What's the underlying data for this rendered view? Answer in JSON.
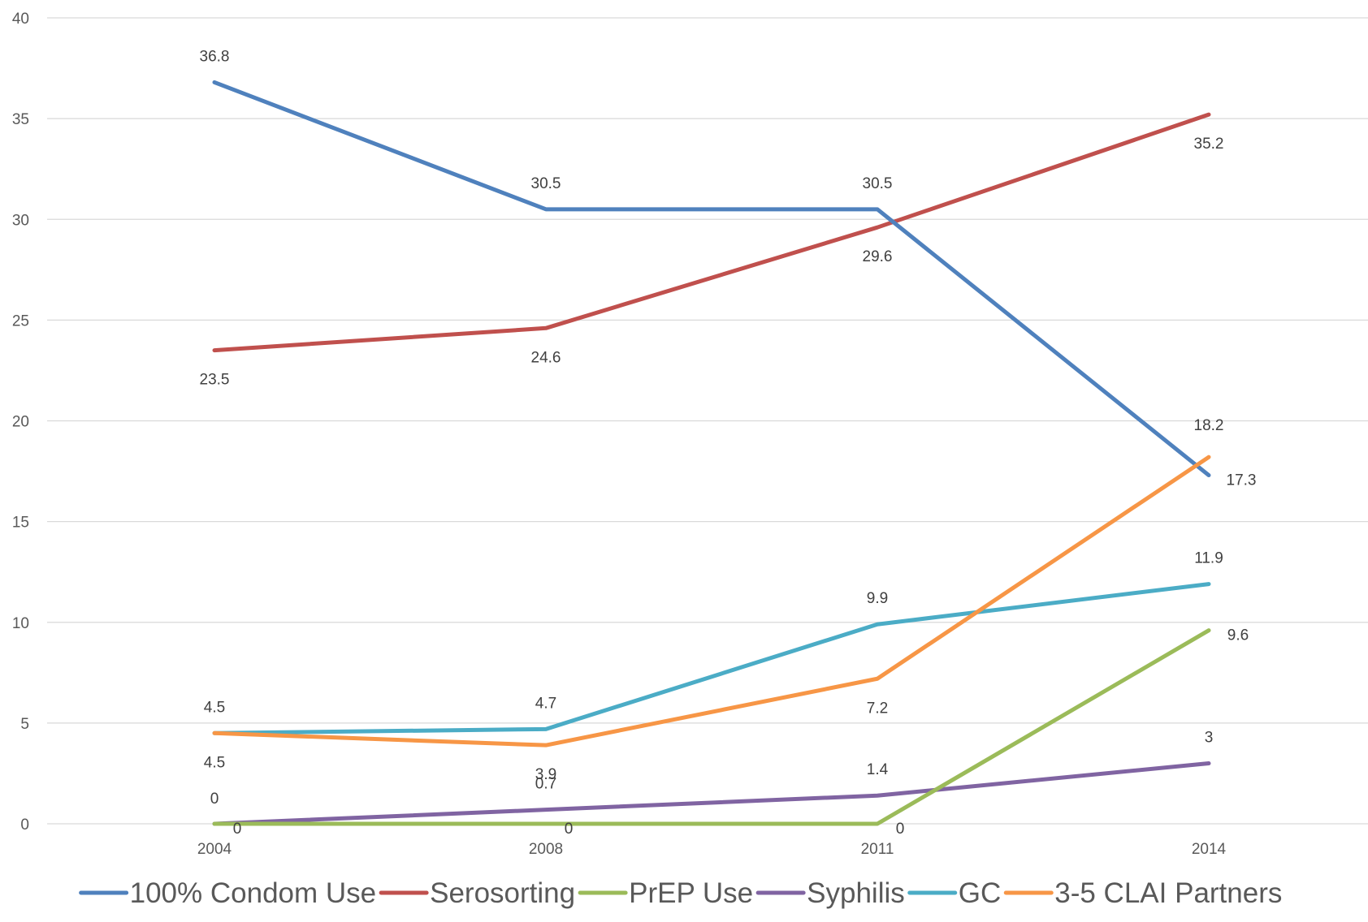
{
  "chart_data": {
    "type": "line",
    "title": "",
    "xlabel": "",
    "ylabel": "",
    "categories": [
      "2004",
      "2008",
      "2011",
      "2014"
    ],
    "ylim": [
      0,
      40
    ],
    "yticks": [
      0,
      5,
      10,
      15,
      20,
      25,
      30,
      35,
      40
    ],
    "grid": true,
    "legend_position": "bottom",
    "series": [
      {
        "name": "100% Condom Use",
        "color": "#4F81BD",
        "values": [
          36.8,
          30.5,
          30.5,
          17.3
        ],
        "labels": [
          "36.8",
          "30.5",
          "30.5",
          "17.3"
        ]
      },
      {
        "name": "Serosorting",
        "color": "#C0504D",
        "values": [
          23.5,
          24.6,
          29.6,
          35.2
        ],
        "labels": [
          "23.5",
          "24.6",
          "29.6",
          "35.2"
        ]
      },
      {
        "name": "PrEP Use",
        "color": "#9BBB59",
        "values": [
          0,
          0,
          0,
          9.6
        ],
        "labels": [
          "0",
          "0",
          "0",
          "9.6"
        ]
      },
      {
        "name": "Syphilis",
        "color": "#8064A2",
        "values": [
          0,
          0.7,
          1.4,
          3
        ],
        "labels": [
          "0",
          "0.7",
          "1.4",
          "3"
        ]
      },
      {
        "name": "GC",
        "color": "#4BACC6",
        "values": [
          4.5,
          4.7,
          9.9,
          11.9
        ],
        "labels": [
          "4.5",
          "4.7",
          "9.9",
          "11.9"
        ]
      },
      {
        "name": "3-5 CLAI Partners",
        "color": "#F79646",
        "values": [
          4.5,
          3.9,
          7.2,
          18.2
        ],
        "labels": [
          "4.5",
          "3.9",
          "7.2",
          "18.2"
        ]
      }
    ]
  }
}
